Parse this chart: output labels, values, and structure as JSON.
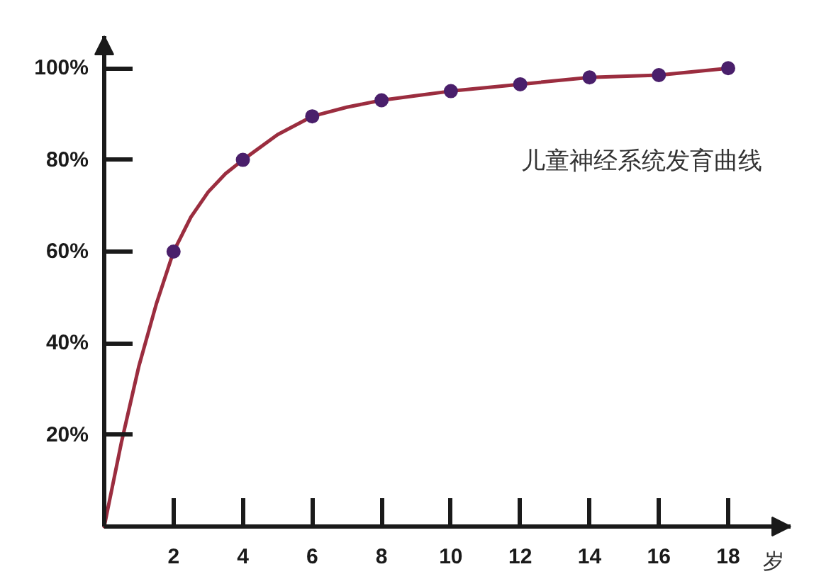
{
  "chart_data": {
    "type": "line",
    "title": "儿童神经系统发育曲线",
    "xlabel": "岁",
    "xlim": [
      0,
      19.8
    ],
    "xticks": [
      2,
      4,
      6,
      8,
      10,
      12,
      14,
      16,
      18
    ],
    "ylim": [
      0,
      107
    ],
    "yticks": [
      {
        "value": 20,
        "label": "20%"
      },
      {
        "value": 40,
        "label": "40%"
      },
      {
        "value": 60,
        "label": "60%"
      },
      {
        "value": 80,
        "label": "80%"
      },
      {
        "value": 100,
        "label": "100%"
      }
    ],
    "grid": false,
    "series": [
      {
        "color": "#9b2d3f",
        "marker": "none",
        "line_style": "solid",
        "x": [
          0,
          0.5,
          1,
          1.5,
          2,
          2.5,
          3,
          3.5,
          4,
          5,
          6,
          7,
          8,
          9,
          10,
          12,
          14,
          16,
          18
        ],
        "values": [
          0,
          18.5,
          35,
          48.5,
          60,
          67.5,
          73,
          77,
          80,
          85.5,
          89.5,
          91.5,
          93,
          94,
          95,
          96.5,
          98,
          98.5,
          100
        ]
      },
      {
        "type": "scatter",
        "color": "#4a1f6b",
        "marker": "circle",
        "x": [
          2,
          4,
          6,
          8,
          10,
          12,
          14,
          16,
          18
        ],
        "values": [
          60,
          80,
          89.5,
          93,
          95,
          96.5,
          98,
          98.5,
          100
        ]
      }
    ]
  }
}
